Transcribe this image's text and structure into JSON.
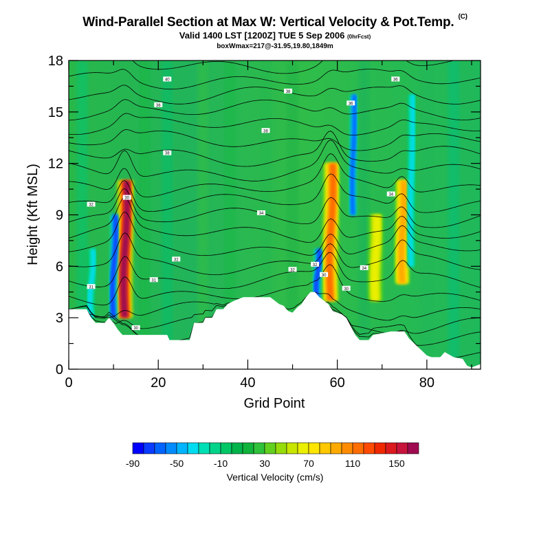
{
  "header": {
    "title": "Wind-Parallel Section at Max W: Vertical Velocity & Pot.Temp.",
    "title_tag": "(C)",
    "subtitle": "Valid 1400 LST [1200Z] TUE 5 Sep 2006",
    "subtitle_tag": "(0hrFcst)",
    "info": "boxWmax=217@-31.95,19.80,1849m"
  },
  "chart_data": {
    "type": "heatmap",
    "xlabel": "Grid Point",
    "ylabel": "Height (Kft MSL)",
    "xlim": [
      0,
      92
    ],
    "ylim": [
      0,
      18
    ],
    "x_ticks": [
      0,
      20,
      40,
      60,
      80
    ],
    "y_ticks": [
      0,
      3,
      6,
      9,
      12,
      15,
      18
    ],
    "colorbar": {
      "title": "Vertical Velocity (cm/s)",
      "labels": [
        "-90",
        "-50",
        "-10",
        "30",
        "70",
        "110",
        "150"
      ],
      "colors": [
        "#0000ff",
        "#0a3cff",
        "#0064ff",
        "#008cff",
        "#00b4ff",
        "#00dcf0",
        "#00e0b4",
        "#00d38a",
        "#00c766",
        "#00b44a",
        "#10b43a",
        "#2fc23a",
        "#62d01e",
        "#96dc0a",
        "#c8e600",
        "#ebef00",
        "#ffe600",
        "#ffc800",
        "#ffaa00",
        "#ff8c00",
        "#ff6e00",
        "#ff4b00",
        "#f02800",
        "#dc1a1e",
        "#c8143c",
        "#a00a50"
      ]
    },
    "updraft_cores": [
      {
        "x": 12.5,
        "z_range": [
          3,
          11
        ],
        "peak_cms": 160
      },
      {
        "x": 58.5,
        "z_range": [
          4,
          12
        ],
        "peak_cms": 110
      },
      {
        "x": 74.5,
        "z_range": [
          5,
          11
        ],
        "peak_cms": 90
      },
      {
        "x": 68.5,
        "z_range": [
          4,
          9
        ],
        "peak_cms": 60
      }
    ],
    "downdraft_cores": [
      {
        "x": 10,
        "z_range": [
          3,
          9
        ],
        "peak_cms": -80
      },
      {
        "x": 5,
        "z_range": [
          3,
          7
        ],
        "peak_cms": -40
      },
      {
        "x": 55.5,
        "z_range": [
          4,
          7
        ],
        "peak_cms": -80
      },
      {
        "x": 63.5,
        "z_range": [
          9,
          16
        ],
        "peak_cms": -70
      },
      {
        "x": 76.5,
        "z_range": [
          6,
          16
        ],
        "peak_cms": -40
      }
    ],
    "terrain_kft": [
      [
        0,
        3.5
      ],
      [
        3,
        3.5
      ],
      [
        4,
        3.5
      ],
      [
        5,
        3
      ],
      [
        6,
        2.7
      ],
      [
        8,
        2.7
      ],
      [
        9,
        3
      ],
      [
        10,
        2.7
      ],
      [
        11,
        2.3
      ],
      [
        12,
        2.0
      ],
      [
        15,
        2.0
      ],
      [
        22,
        2.0
      ],
      [
        22.5,
        1.7
      ],
      [
        27,
        1.7
      ],
      [
        28,
        2.7
      ],
      [
        30,
        2.7
      ],
      [
        30.5,
        3
      ],
      [
        32,
        3
      ],
      [
        33,
        3.5
      ],
      [
        34.5,
        3.5
      ],
      [
        35.5,
        3.8
      ],
      [
        37,
        4
      ],
      [
        39,
        4.2
      ],
      [
        45,
        4.2
      ],
      [
        46,
        4
      ],
      [
        47,
        3.8
      ],
      [
        48,
        3.7
      ],
      [
        49,
        3.4
      ],
      [
        50,
        3.3
      ],
      [
        51,
        3.6
      ],
      [
        52,
        3.8
      ],
      [
        53,
        4.2
      ],
      [
        54,
        4.5
      ],
      [
        55,
        4.5
      ],
      [
        56,
        4.2
      ],
      [
        57,
        4
      ],
      [
        58,
        3.8
      ],
      [
        59,
        3.4
      ],
      [
        61,
        3.2
      ],
      [
        62,
        3
      ],
      [
        63,
        2.5
      ],
      [
        64,
        2
      ],
      [
        65,
        1.7
      ],
      [
        67,
        1.7
      ],
      [
        68,
        2
      ],
      [
        72,
        2.2
      ],
      [
        75,
        2.2
      ],
      [
        76,
        1.8
      ],
      [
        78,
        1.3
      ],
      [
        80,
        0.8
      ],
      [
        81,
        0.7
      ],
      [
        83,
        0.7
      ],
      [
        84,
        1
      ],
      [
        86,
        0.7
      ],
      [
        88,
        0.6
      ],
      [
        89,
        0.2
      ],
      [
        90,
        0.1
      ],
      [
        92,
        0.3
      ]
    ],
    "theta_contour_labels": [
      "40",
      "38",
      "38",
      "36",
      "36",
      "38",
      "38",
      "32",
      "30",
      "34",
      "34",
      "32",
      "31",
      "32",
      "32",
      "30",
      "34",
      "30",
      "31",
      "30"
    ]
  }
}
